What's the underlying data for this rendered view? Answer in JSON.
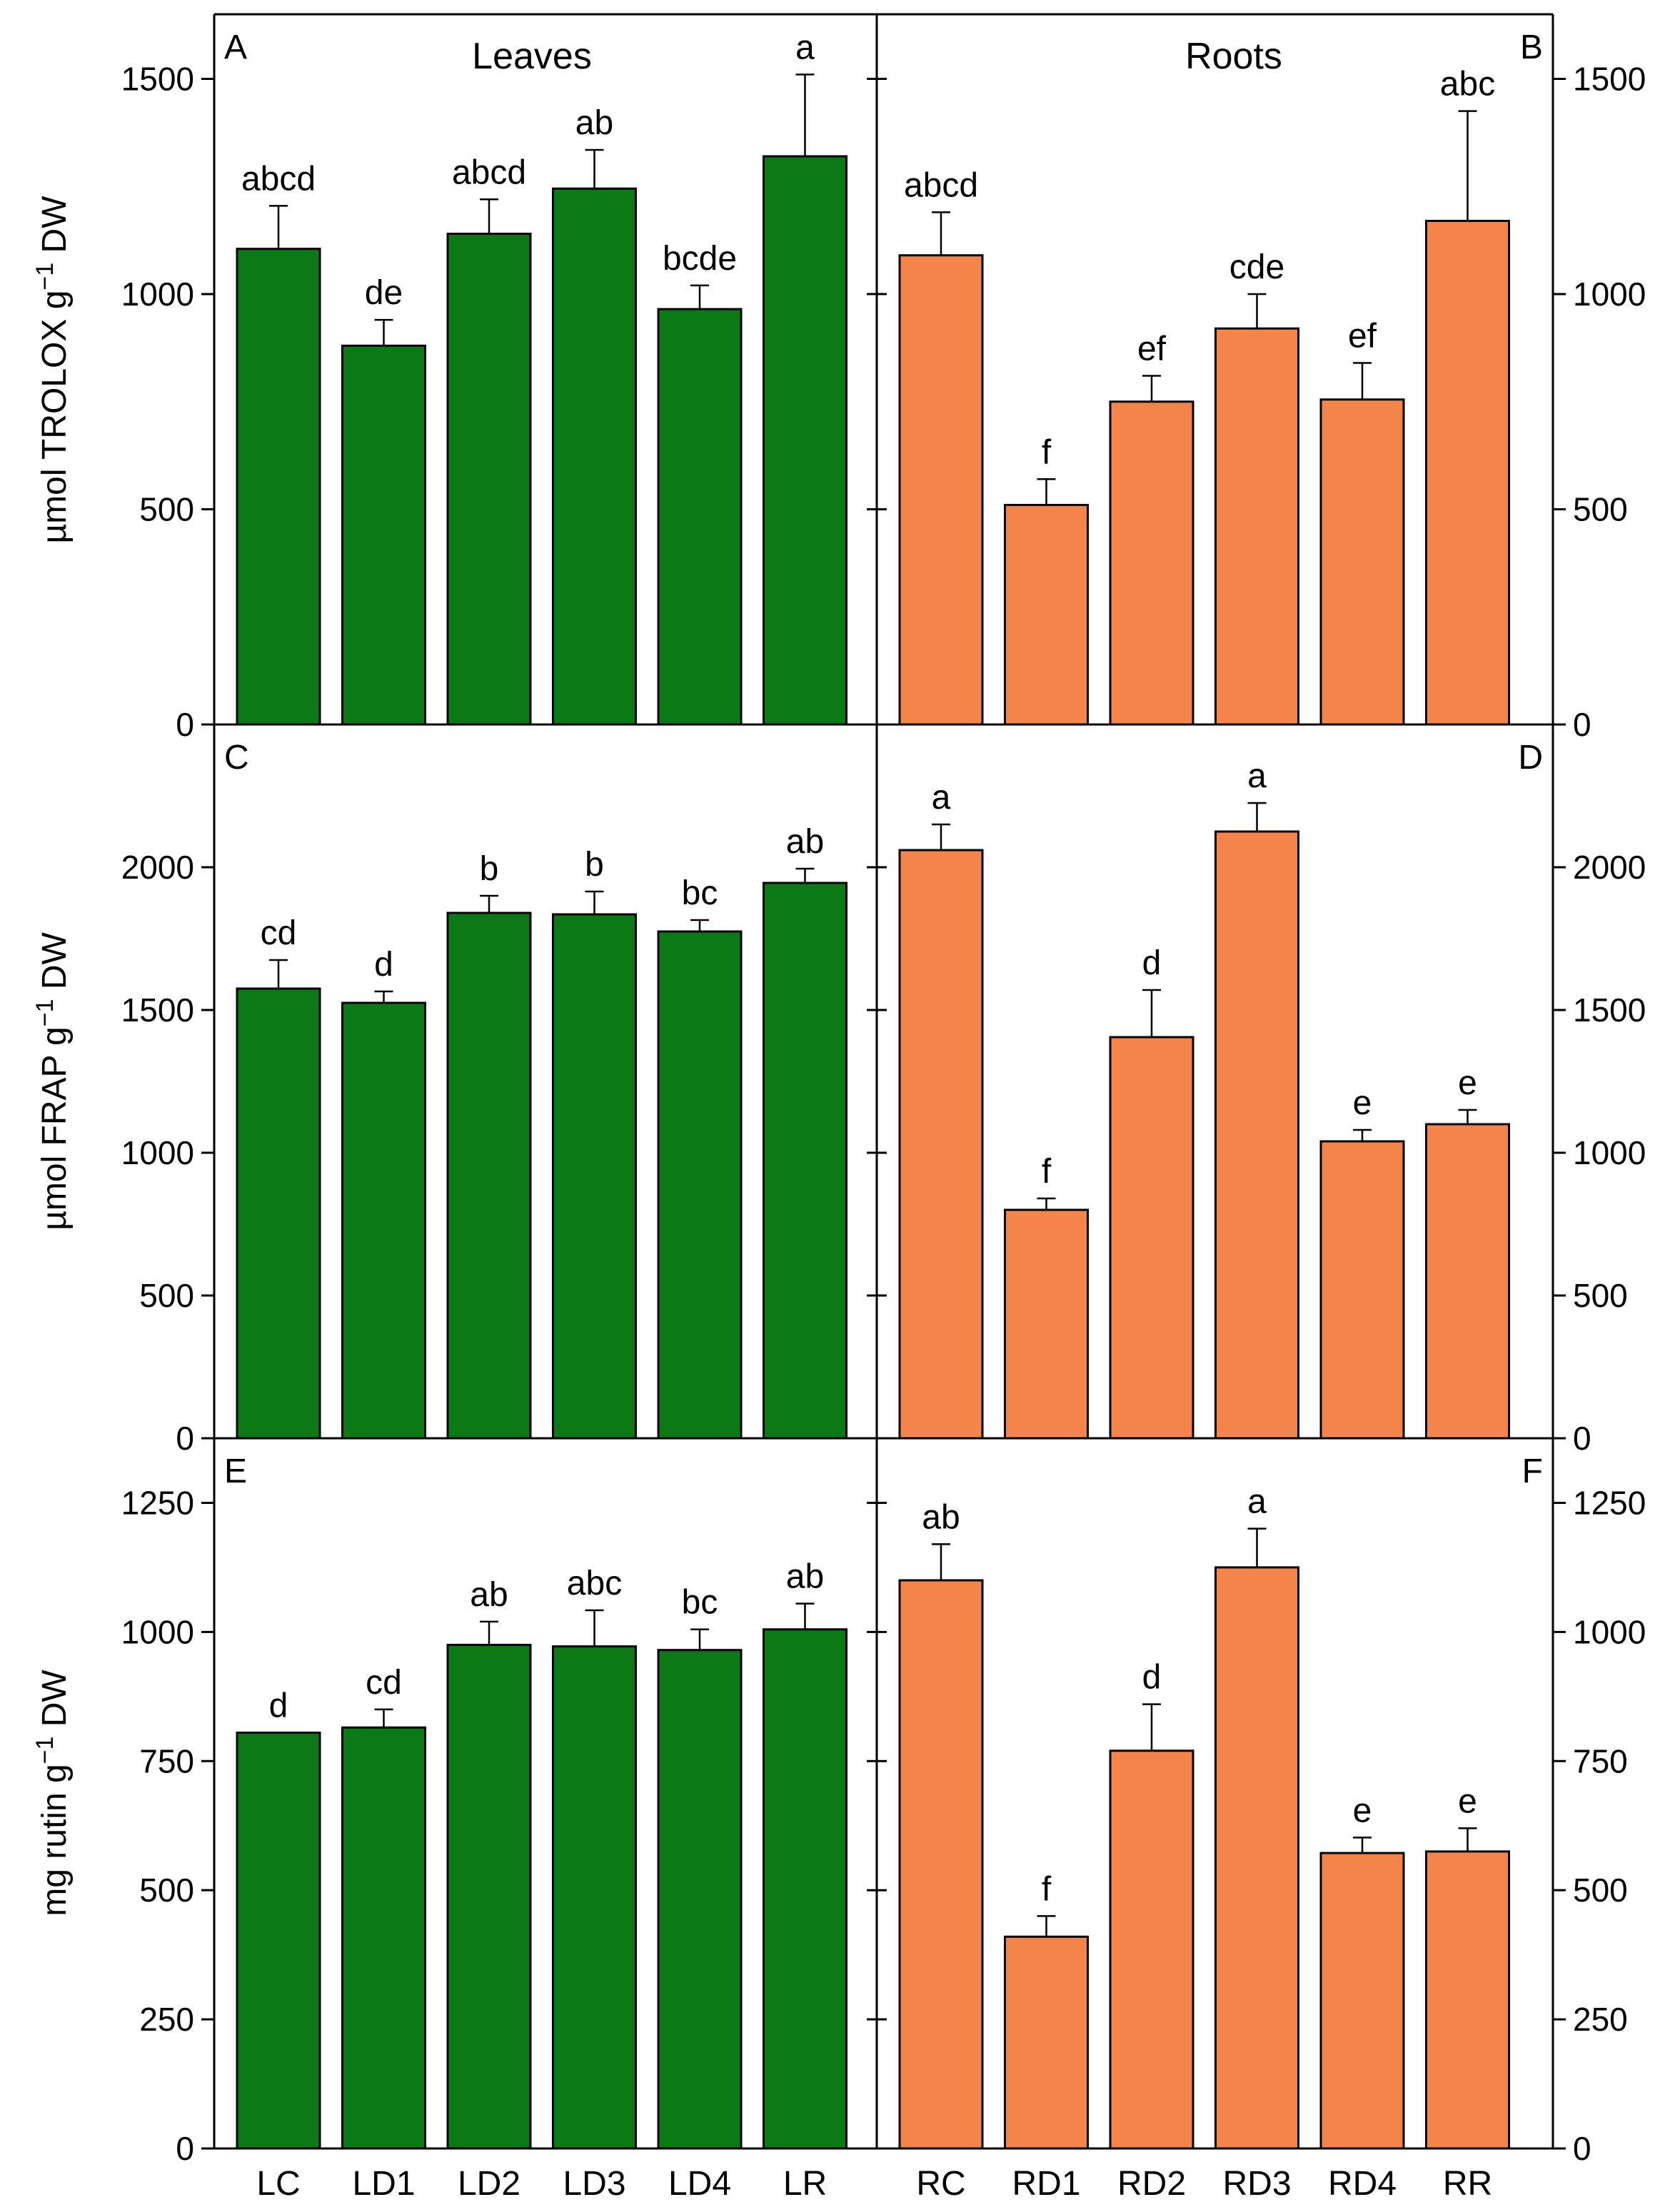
{
  "colors": {
    "leaves": "#0b7a16",
    "roots": "#f5844a",
    "axis": "#000000",
    "background": "#ffffff"
  },
  "titles": {
    "leaves": "Leaves",
    "roots": "Roots"
  },
  "categories": {
    "leaves": [
      "LC",
      "LD1",
      "LD2",
      "LD3",
      "LD4",
      "LR"
    ],
    "roots": [
      "RC",
      "RD1",
      "RD2",
      "RD3",
      "RD4",
      "RR"
    ]
  },
  "y_axis_titles": [
    {
      "base": "µmol TROLOX g",
      "sup": "−1",
      "tail": " DW"
    },
    {
      "base": "µmol FRAP g",
      "sup": "−1",
      "tail": " DW"
    },
    {
      "base": "mg rutin g",
      "sup": "−1",
      "tail": " DW"
    }
  ],
  "chart_data": [
    {
      "type": "bar",
      "panel": "A",
      "organ": "leaves",
      "title": "Leaves",
      "ylabel": "µmol TROLOX g−1 DW",
      "ylim": [
        0,
        1650
      ],
      "yticks": [
        0,
        500,
        1000,
        1500
      ],
      "categories": [
        "LC",
        "LD1",
        "LD2",
        "LD3",
        "LD4",
        "LR"
      ],
      "values": [
        1105,
        880,
        1140,
        1245,
        965,
        1320
      ],
      "errors": [
        100,
        60,
        80,
        90,
        55,
        190
      ],
      "letters": [
        "abcd",
        "de",
        "abcd",
        "ab",
        "bcde",
        "a"
      ]
    },
    {
      "type": "bar",
      "panel": "B",
      "organ": "roots",
      "title": "Roots",
      "ylabel": "µmol TROLOX g−1 DW",
      "ylim": [
        0,
        1650
      ],
      "yticks": [
        0,
        500,
        1000,
        1500
      ],
      "categories": [
        "RC",
        "RD1",
        "RD2",
        "RD3",
        "RD4",
        "RR"
      ],
      "values": [
        1090,
        510,
        750,
        920,
        755,
        1170
      ],
      "errors": [
        100,
        60,
        60,
        80,
        85,
        255
      ],
      "letters": [
        "abcd",
        "f",
        "ef",
        "cde",
        "ef",
        "abc"
      ]
    },
    {
      "type": "bar",
      "panel": "C",
      "organ": "leaves",
      "title": "",
      "ylabel": "µmol FRAP g−1 DW",
      "ylim": [
        0,
        2500
      ],
      "yticks": [
        0,
        500,
        1000,
        1500,
        2000
      ],
      "categories": [
        "LC",
        "LD1",
        "LD2",
        "LD3",
        "LD4",
        "LR"
      ],
      "values": [
        1575,
        1525,
        1840,
        1835,
        1775,
        1945
      ],
      "errors": [
        100,
        40,
        60,
        80,
        40,
        50
      ],
      "letters": [
        "cd",
        "d",
        "b",
        "b",
        "bc",
        "ab"
      ]
    },
    {
      "type": "bar",
      "panel": "D",
      "organ": "roots",
      "title": "",
      "ylabel": "µmol FRAP g−1 DW",
      "ylim": [
        0,
        2500
      ],
      "yticks": [
        0,
        500,
        1000,
        1500,
        2000
      ],
      "categories": [
        "RC",
        "RD1",
        "RD2",
        "RD3",
        "RD4",
        "RR"
      ],
      "values": [
        2060,
        800,
        1405,
        2125,
        1040,
        1100
      ],
      "errors": [
        90,
        40,
        165,
        100,
        40,
        50
      ],
      "letters": [
        "a",
        "f",
        "d",
        "a",
        "e",
        "e"
      ]
    },
    {
      "type": "bar",
      "panel": "E",
      "organ": "leaves",
      "title": "",
      "ylabel": "mg rutin g−1 DW",
      "ylim": [
        0,
        1375
      ],
      "yticks": [
        0,
        250,
        500,
        750,
        1000,
        1250
      ],
      "categories": [
        "LC",
        "LD1",
        "LD2",
        "LD3",
        "LD4",
        "LR"
      ],
      "values": [
        805,
        815,
        975,
        972,
        965,
        1005
      ],
      "errors": [
        0,
        35,
        45,
        70,
        40,
        50
      ],
      "letters": [
        "d",
        "cd",
        "ab",
        "abc",
        "bc",
        "ab"
      ]
    },
    {
      "type": "bar",
      "panel": "F",
      "organ": "roots",
      "title": "",
      "ylabel": "mg rutin g−1 DW",
      "ylim": [
        0,
        1375
      ],
      "yticks": [
        0,
        250,
        500,
        750,
        1000,
        1250
      ],
      "categories": [
        "RC",
        "RD1",
        "RD2",
        "RD3",
        "RD4",
        "RR"
      ],
      "values": [
        1100,
        410,
        770,
        1125,
        572,
        575
      ],
      "errors": [
        70,
        40,
        90,
        75,
        30,
        45
      ],
      "letters": [
        "ab",
        "f",
        "d",
        "a",
        "e",
        "e"
      ]
    }
  ]
}
